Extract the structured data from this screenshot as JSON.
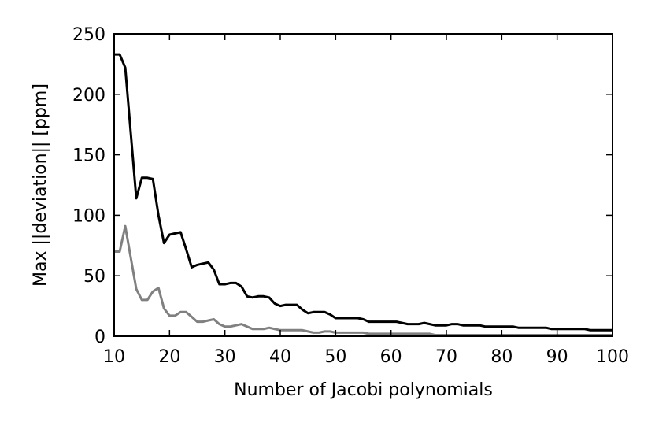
{
  "chart_data": {
    "type": "line",
    "title": "",
    "xlabel": "Number of Jacobi polynomials",
    "ylabel": "Max ||deviation||  [ppm]",
    "xlim": [
      10,
      100
    ],
    "ylim": [
      0,
      250
    ],
    "xticks": [
      10,
      20,
      30,
      40,
      50,
      60,
      70,
      80,
      90,
      100
    ],
    "yticks": [
      0,
      50,
      100,
      150,
      200,
      250
    ],
    "grid": false,
    "legend": "none",
    "series": [
      {
        "color": "#000000",
        "x": [
          10,
          11,
          12,
          13,
          14,
          15,
          16,
          17,
          18,
          19,
          20,
          21,
          22,
          23,
          24,
          25,
          26,
          27,
          28,
          29,
          30,
          31,
          32,
          33,
          34,
          35,
          36,
          37,
          38,
          39,
          40,
          41,
          42,
          43,
          44,
          45,
          46,
          47,
          48,
          49,
          50,
          51,
          52,
          53,
          54,
          55,
          56,
          57,
          58,
          59,
          60,
          61,
          62,
          63,
          64,
          65,
          66,
          67,
          68,
          69,
          70,
          71,
          72,
          73,
          74,
          75,
          76,
          77,
          78,
          79,
          80,
          81,
          82,
          83,
          84,
          85,
          86,
          87,
          88,
          89,
          90,
          91,
          92,
          93,
          94,
          95,
          96,
          97,
          98,
          99,
          100
        ],
        "y": [
          233,
          233,
          222,
          168,
          114,
          131,
          131,
          130,
          100,
          77,
          84,
          85,
          86,
          72,
          57,
          59,
          60,
          61,
          55,
          43,
          43,
          44,
          44,
          41,
          33,
          32,
          33,
          33,
          32,
          27,
          25,
          26,
          26,
          26,
          22,
          19,
          20,
          20,
          20,
          18,
          15,
          15,
          15,
          15,
          15,
          14,
          12,
          12,
          12,
          12,
          12,
          12,
          11,
          10,
          10,
          10,
          11,
          10,
          9,
          9,
          9,
          10,
          10,
          9,
          9,
          9,
          9,
          8,
          8,
          8,
          8,
          8,
          8,
          7,
          7,
          7,
          7,
          7,
          7,
          6,
          6,
          6,
          6,
          6,
          6,
          6,
          5,
          5,
          5,
          5,
          5
        ]
      },
      {
        "color": "#808080",
        "x": [
          10,
          11,
          12,
          13,
          14,
          15,
          16,
          17,
          18,
          19,
          20,
          21,
          22,
          23,
          24,
          25,
          26,
          27,
          28,
          29,
          30,
          31,
          32,
          33,
          34,
          35,
          36,
          37,
          38,
          39,
          40,
          41,
          42,
          43,
          44,
          45,
          46,
          47,
          48,
          49,
          50,
          51,
          52,
          53,
          54,
          55,
          56,
          57,
          58,
          59,
          60,
          61,
          62,
          63,
          64,
          65,
          66,
          67,
          68,
          69,
          70,
          71,
          72,
          73,
          74,
          75,
          76,
          77,
          78,
          79,
          80,
          81,
          82,
          83,
          84,
          85,
          86,
          87,
          88,
          89,
          90,
          91,
          92,
          93,
          94,
          95,
          96,
          97,
          98,
          99,
          100
        ],
        "y": [
          70,
          70,
          91,
          65,
          39,
          30,
          30,
          37,
          40,
          23,
          17,
          17,
          20,
          20,
          16,
          12,
          12,
          13,
          14,
          10,
          8,
          8,
          9,
          10,
          8,
          6,
          6,
          6,
          7,
          6,
          5,
          5,
          5,
          5,
          5,
          4,
          3,
          3,
          4,
          4,
          3,
          3,
          3,
          3,
          3,
          3,
          2,
          2,
          2,
          2,
          2,
          2,
          2,
          2,
          2,
          2,
          2,
          2,
          1,
          1,
          1,
          1,
          1,
          1,
          1,
          1,
          1,
          1,
          1,
          1,
          1,
          1,
          1,
          1,
          1,
          1,
          1,
          1,
          1,
          1,
          1,
          1,
          1,
          1,
          1,
          1,
          1,
          1,
          1,
          1,
          1
        ]
      }
    ]
  }
}
